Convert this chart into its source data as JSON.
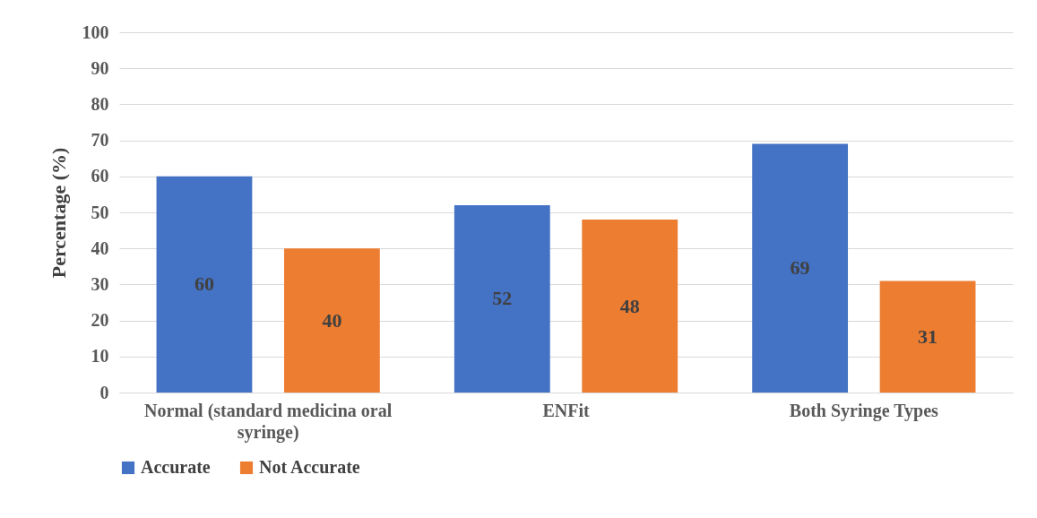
{
  "chart_data": {
    "type": "bar",
    "ylabel": "Percentage (%)",
    "categories": [
      "Normal (standard medicina oral syringe)",
      "ENFit",
      "Both Syringe Types"
    ],
    "series": [
      {
        "name": "Accurate",
        "color": "#4472c4",
        "values": [
          60,
          52,
          69
        ]
      },
      {
        "name": "Not Accurate",
        "color": "#ed7d31",
        "values": [
          40,
          48,
          31
        ]
      }
    ],
    "ylim": [
      0,
      100
    ],
    "yticks": [
      0,
      10,
      20,
      30,
      40,
      50,
      60,
      70,
      80,
      90,
      100
    ],
    "grid": "y",
    "legend": "bottom",
    "data_labels": true
  }
}
